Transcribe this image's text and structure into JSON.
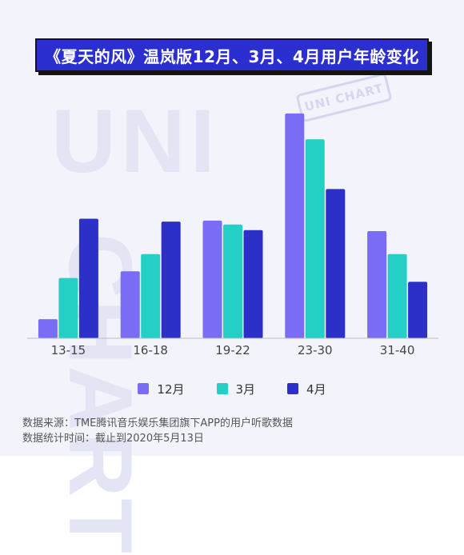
{
  "title": "《夏天的风》温岚版12月、3月、4月用户年龄变化",
  "watermark": {
    "big": "UNI",
    "side": "CHART",
    "stamp": "UNI CHART"
  },
  "colors": {
    "title_bg": "#2b2fd0",
    "s12": "#7b6cf6",
    "s3": "#24d0c6",
    "s4": "#2c30c8",
    "axis": "#bbbbbb"
  },
  "chart_data": {
    "type": "bar",
    "categories": [
      "13-15",
      "16-18",
      "19-22",
      "23-30",
      "31-40"
    ],
    "series": [
      {
        "name": "12月",
        "values": [
          2.0,
          7.0,
          12.3,
          23.5,
          11.2
        ]
      },
      {
        "name": "3月",
        "values": [
          6.3,
          8.8,
          11.9,
          20.8,
          8.8
        ]
      },
      {
        "name": "4月",
        "values": [
          12.5,
          12.2,
          11.3,
          15.6,
          5.9
        ]
      }
    ],
    "ylim": [
      0,
      26
    ],
    "grid": false,
    "legend": "bottom"
  },
  "source": {
    "line1": "数据来源：TME腾讯音乐娱乐集团旗下APP的用户听歌数据",
    "line2": "数据统计时间：截止到2020年5月13日"
  }
}
